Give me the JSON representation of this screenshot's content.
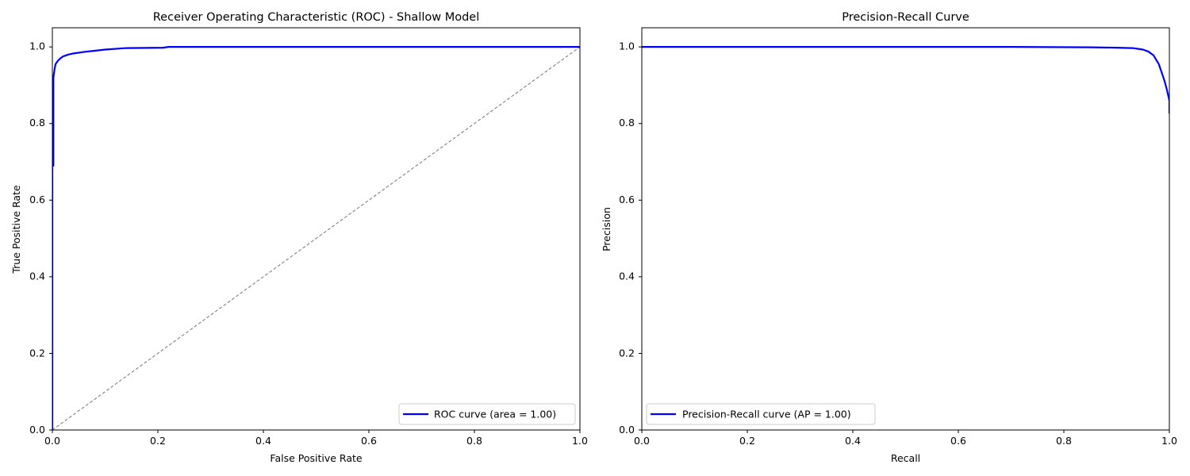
{
  "chart_data": [
    {
      "type": "line",
      "title": "Receiver Operating Characteristic (ROC) - Shallow Model",
      "xlabel": "False Positive Rate",
      "ylabel": "True Positive Rate",
      "xlim": [
        0,
        1
      ],
      "ylim": [
        0,
        1.05
      ],
      "xticks": [
        0.0,
        0.2,
        0.4,
        0.6,
        0.8,
        1.0
      ],
      "yticks": [
        0.0,
        0.2,
        0.4,
        0.6,
        0.8,
        1.0
      ],
      "tick_labels_x": [
        "0.0",
        "0.2",
        "0.4",
        "0.6",
        "0.8",
        "1.0"
      ],
      "tick_labels_y": [
        "0.0",
        "0.2",
        "0.4",
        "0.6",
        "0.8",
        "1.0"
      ],
      "grid": false,
      "legend_position": "lower-right",
      "series": [
        {
          "name": "ROC curve (area = 1.00)",
          "color": "#0000ff",
          "style": "solid",
          "x": [
            0,
            0,
            0.002,
            0.002,
            0.004,
            0.006,
            0.01,
            0.015,
            0.02,
            0.03,
            0.04,
            0.06,
            0.08,
            0.1,
            0.14,
            0.21,
            0.22,
            0.4,
            0.6,
            0.8,
            1.0
          ],
          "y": [
            0,
            0.69,
            0.69,
            0.92,
            0.94,
            0.955,
            0.963,
            0.97,
            0.975,
            0.98,
            0.983,
            0.987,
            0.99,
            0.993,
            0.997,
            0.998,
            1.0,
            1.0,
            1.0,
            1.0,
            1.0
          ]
        },
        {
          "name": "",
          "color": "#808080",
          "style": "dashed",
          "x": [
            0,
            1
          ],
          "y": [
            0,
            1
          ]
        }
      ]
    },
    {
      "type": "line",
      "title": "Precision-Recall Curve",
      "xlabel": "Recall",
      "ylabel": "Precision",
      "xlim": [
        0,
        1
      ],
      "ylim": [
        0,
        1.05
      ],
      "xticks": [
        0.0,
        0.2,
        0.4,
        0.6,
        0.8,
        1.0
      ],
      "yticks": [
        0.0,
        0.2,
        0.4,
        0.6,
        0.8,
        1.0
      ],
      "tick_labels_x": [
        "0.0",
        "0.2",
        "0.4",
        "0.6",
        "0.8",
        "1.0"
      ],
      "tick_labels_y": [
        "0.0",
        "0.2",
        "0.4",
        "0.6",
        "0.8",
        "1.0"
      ],
      "grid": false,
      "legend_position": "lower-left",
      "series": [
        {
          "name": "Precision-Recall curve (AP = 1.00)",
          "color": "#0000ff",
          "style": "solid",
          "x": [
            0,
            0.5,
            0.7,
            0.85,
            0.9,
            0.93,
            0.95,
            0.96,
            0.97,
            0.98,
            0.99,
            0.995,
            1.0,
            1.0
          ],
          "y": [
            1.0,
            1.0,
            1.0,
            0.999,
            0.998,
            0.997,
            0.993,
            0.988,
            0.978,
            0.955,
            0.915,
            0.89,
            0.86,
            0.826
          ]
        }
      ]
    }
  ]
}
